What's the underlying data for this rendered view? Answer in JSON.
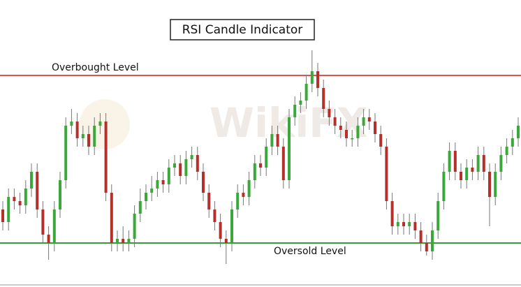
{
  "chart_data": {
    "type": "candlestick",
    "title": "RSI Candle Indicator",
    "watermark": "WikiFX",
    "ylim": [
      20,
      88
    ],
    "up_color": "#3aa83a",
    "down_color": "#b5302a",
    "levels": [
      {
        "name": "Overbought Level",
        "value": 70,
        "color": "#d9534f"
      },
      {
        "name": "Oversold Level",
        "value": 30,
        "color": "#3a9a3a"
      }
    ],
    "open": [
      38,
      35,
      41,
      40,
      39,
      43,
      47,
      38,
      32,
      30,
      38,
      45,
      58,
      59,
      55,
      56,
      53,
      58,
      59,
      42,
      30,
      31,
      30,
      31,
      37,
      40,
      42,
      43,
      45,
      44,
      48,
      49,
      46,
      50,
      51,
      47,
      42,
      38,
      35,
      31,
      30,
      38,
      42,
      41,
      45,
      49,
      48,
      53,
      56,
      53,
      45,
      60,
      63,
      64,
      68,
      71,
      67,
      62,
      60,
      58,
      57,
      55,
      55,
      58,
      60,
      59,
      56,
      53,
      40,
      34,
      35,
      34,
      35,
      33,
      30,
      28,
      33,
      40,
      47,
      52,
      47,
      45,
      48,
      47,
      51,
      47,
      41,
      47,
      51,
      53,
      55
    ],
    "high": [
      40,
      43,
      43,
      42,
      45,
      49,
      49,
      40,
      34,
      40,
      47,
      60,
      62,
      61,
      58,
      58,
      60,
      61,
      61,
      44,
      33,
      34,
      33,
      39,
      43,
      44,
      46,
      47,
      47,
      50,
      51,
      51,
      52,
      53,
      53,
      49,
      44,
      40,
      37,
      33,
      40,
      44,
      44,
      47,
      51,
      51,
      55,
      58,
      58,
      55,
      62,
      65,
      66,
      70,
      76,
      73,
      69,
      64,
      62,
      60,
      59,
      57,
      60,
      62,
      62,
      61,
      58,
      55,
      42,
      37,
      37,
      37,
      37,
      35,
      32,
      35,
      42,
      49,
      54,
      54,
      49,
      50,
      50,
      53,
      53,
      49,
      49,
      53,
      55,
      57,
      60
    ],
    "low": [
      33,
      33,
      38,
      37,
      37,
      41,
      36,
      30,
      26,
      28,
      36,
      43,
      56,
      53,
      53,
      51,
      51,
      56,
      40,
      28,
      28,
      28,
      28,
      29,
      35,
      38,
      40,
      41,
      42,
      42,
      46,
      44,
      44,
      48,
      45,
      40,
      36,
      33,
      29,
      25,
      28,
      36,
      39,
      39,
      43,
      46,
      46,
      51,
      51,
      43,
      43,
      58,
      61,
      62,
      66,
      65,
      60,
      58,
      56,
      55,
      53,
      53,
      53,
      56,
      57,
      54,
      51,
      38,
      32,
      32,
      32,
      32,
      31,
      28,
      27,
      26,
      31,
      38,
      45,
      45,
      43,
      43,
      45,
      45,
      45,
      34,
      39,
      45,
      49,
      51,
      53
    ],
    "close": [
      35,
      41,
      40,
      39,
      43,
      47,
      38,
      32,
      30,
      38,
      45,
      58,
      59,
      55,
      56,
      53,
      58,
      59,
      42,
      30,
      31,
      30,
      31,
      37,
      40,
      42,
      43,
      45,
      44,
      48,
      49,
      46,
      50,
      51,
      47,
      42,
      38,
      35,
      31,
      30,
      38,
      42,
      41,
      45,
      49,
      48,
      53,
      56,
      53,
      45,
      60,
      63,
      64,
      68,
      71,
      67,
      62,
      60,
      58,
      57,
      55,
      55,
      58,
      60,
      59,
      56,
      53,
      40,
      34,
      35,
      34,
      35,
      33,
      30,
      28,
      33,
      40,
      47,
      52,
      47,
      45,
      48,
      47,
      51,
      47,
      41,
      47,
      51,
      53,
      55,
      58
    ]
  }
}
